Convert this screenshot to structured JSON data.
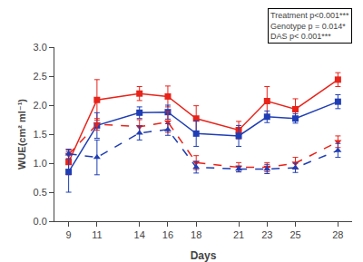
{
  "chart_data": {
    "type": "line",
    "x": [
      9,
      11,
      14,
      16,
      18,
      21,
      23,
      25,
      28
    ],
    "series": [
      {
        "color": "#e8231a",
        "marker": "square",
        "line_style": "solid",
        "values": [
          1.02,
          2.09,
          2.2,
          2.15,
          1.77,
          1.57,
          2.07,
          1.93,
          2.44
        ],
        "errors": [
          0.22,
          0.35,
          0.12,
          0.18,
          0.22,
          0.15,
          0.25,
          0.18,
          0.12
        ]
      },
      {
        "color": "#1f3eb5",
        "marker": "square",
        "line_style": "solid",
        "values": [
          0.85,
          1.65,
          1.87,
          1.88,
          1.51,
          1.47,
          1.8,
          1.77,
          2.06
        ],
        "errors": [
          0.35,
          0.22,
          0.1,
          0.12,
          0.22,
          0.18,
          0.1,
          0.08,
          0.12
        ]
      },
      {
        "color": "#e8231a",
        "marker": "triangle-down",
        "line_style": "dashed",
        "values": [
          1.15,
          1.67,
          1.63,
          1.71,
          1.01,
          0.93,
          0.93,
          1.0,
          1.37
        ],
        "errors": [
          0.08,
          0.1,
          0.12,
          0.18,
          0.12,
          0.08,
          0.08,
          0.1,
          0.1
        ]
      },
      {
        "color": "#1f3eb5",
        "marker": "triangle-up",
        "line_style": "dashed",
        "values": [
          1.16,
          1.1,
          1.52,
          1.58,
          0.93,
          0.9,
          0.9,
          0.92,
          1.22
        ],
        "errors": [
          0.08,
          0.3,
          0.12,
          0.1,
          0.1,
          0.05,
          0.08,
          0.08,
          0.12
        ]
      }
    ],
    "xlabel": "Days",
    "ylabel": "WUE(cm² ml⁻¹)",
    "xlim": [
      8,
      29
    ],
    "xticks": [
      9,
      11,
      14,
      16,
      18,
      21,
      23,
      25,
      28
    ],
    "ylim": [
      0.0,
      3.0
    ],
    "yticks": [
      0.0,
      0.5,
      1.0,
      1.5,
      2.0,
      2.5,
      3.0
    ],
    "annotation": "Treatment p<0.001***\nGenotype p = 0.014*\nDAS p< 0.001***",
    "grid": false
  }
}
